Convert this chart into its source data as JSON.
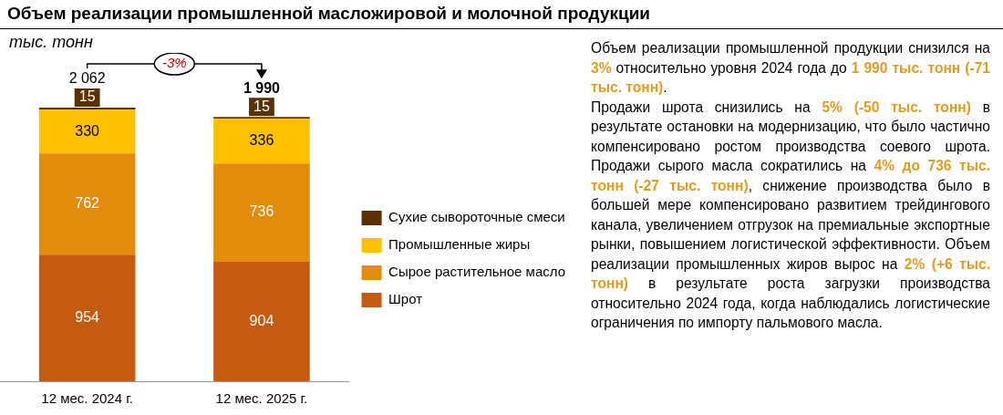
{
  "chart_data": {
    "type": "bar",
    "title": "Объем реализации промышленной масложировой и молочной продукции",
    "ylabel": "тыс. тонн",
    "categories": [
      "12 мес. 2024 г.",
      "12 мес. 2025 г."
    ],
    "stacked": true,
    "data_labels": true,
    "legend": "right",
    "totals": [
      "2 062",
      "1 990"
    ],
    "series": [
      {
        "name": "Шрот",
        "color": "#c55a11",
        "values": [
          954,
          904
        ]
      },
      {
        "name": "Сырое растительное масло",
        "color": "#e38c0c",
        "values": [
          762,
          736
        ]
      },
      {
        "name": "Промышленные жиры",
        "color": "#ffc000",
        "values": [
          330,
          336
        ]
      },
      {
        "name": "Сухие сывороточные смеси",
        "color": "#5c3100",
        "values": [
          15,
          15
        ]
      }
    ],
    "annotations": [
      "-3%",
      "Объем реализации промышленной продукции снизился на ",
      "3%",
      " относительно уровня 2024 года до ",
      "1 990 тыс. тонн (-71 тыс. тонн)",
      ".\nПродажи шрота снизились на ",
      "5% (-50 тыс. тонн)",
      " в результате остановки на модернизацию, что было частично компенсировано ростом производства соевого шрота. Продажи сырого масла сократились на ",
      "4% до 736 тыс. тонн (-27 тыс. тонн)",
      ", снижение производства было в большей мере компенсировано развитием трейдингового канала, увеличением отгрузок на премиальные экспортные рынки, повышением логистической эффективности. Объем реализации промышленных жиров вырос на ",
      "2% (+6 тыс. тонн)",
      " в результате роста загрузки производства относительно 2024 года, когда наблюдались логистические ограничения по импорту пальмового масла."
    ]
  }
}
